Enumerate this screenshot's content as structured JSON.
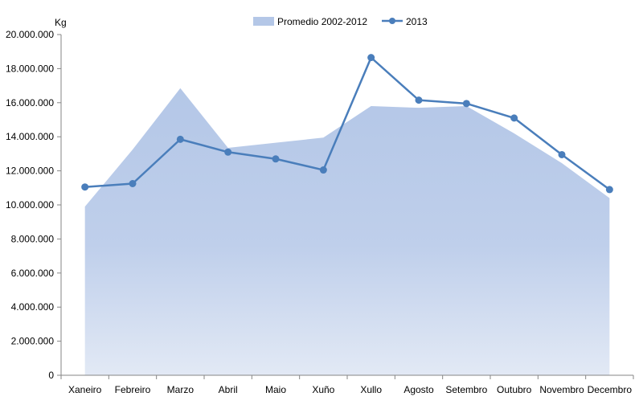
{
  "chart_data": {
    "type": "line",
    "ylabel": "Kg",
    "ylim": [
      0,
      20000000
    ],
    "yticks": [
      0,
      2000000,
      4000000,
      6000000,
      8000000,
      10000000,
      12000000,
      14000000,
      16000000,
      18000000,
      20000000
    ],
    "ytick_labels": [
      "0",
      "2.000.000",
      "4.000.000",
      "6.000.000",
      "8.000.000",
      "10.000.000",
      "12.000.000",
      "14.000.000",
      "16.000.000",
      "18.000.000",
      "20.000.000"
    ],
    "categories": [
      "Xaneiro",
      "Febreiro",
      "Marzo",
      "Abril",
      "Maio",
      "Xuño",
      "Xullo",
      "Agosto",
      "Setembro",
      "Outubro",
      "Novembro",
      "Decembro"
    ],
    "legend_position": "top-center",
    "grid": false,
    "series": [
      {
        "name": "Promedio 2002-2012",
        "kind": "area",
        "color": "#B4C7E7",
        "values": [
          9900000,
          13250000,
          16850000,
          13350000,
          13650000,
          13950000,
          15800000,
          15700000,
          15800000,
          14200000,
          12450000,
          10400000
        ]
      },
      {
        "name": "2013",
        "kind": "line",
        "color": "#4A7EBB",
        "values": [
          11050000,
          11250000,
          13850000,
          13100000,
          12700000,
          12050000,
          18650000,
          16150000,
          15950000,
          15100000,
          12950000,
          10900000
        ]
      }
    ]
  }
}
